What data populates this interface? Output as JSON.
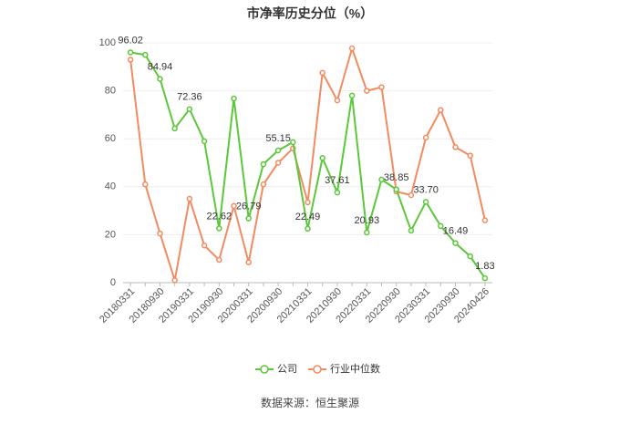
{
  "chart_data": {
    "type": "line",
    "title": "市净率历史分位（%）",
    "categories": [
      "20180331",
      null,
      "20180930",
      null,
      "20190331",
      null,
      "20190930",
      null,
      "20200331",
      null,
      "20200930",
      null,
      "20210331",
      null,
      "20210930",
      null,
      "20220331",
      null,
      "20220930",
      null,
      "20230331",
      null,
      "20230930",
      null,
      "20240426"
    ],
    "series": [
      {
        "name": "公司",
        "color": "#5cc73a",
        "values": [
          96.02,
          95,
          84.94,
          64.3,
          72.36,
          59,
          22.62,
          76.8,
          26.79,
          49.4,
          55.15,
          58.6,
          22.49,
          52,
          37.61,
          78,
          20.93,
          43,
          38.85,
          21.7,
          33.7,
          23.6,
          16.49,
          11,
          1.83
        ],
        "value_labels": [
          "96.02",
          null,
          "84.94",
          null,
          "72.36",
          null,
          "22.62",
          null,
          "26.79",
          null,
          "55.15",
          null,
          "22.49",
          null,
          "37.61",
          null,
          "20.93",
          null,
          "38.85",
          null,
          "33.70",
          null,
          "16.49",
          null,
          "1.83"
        ]
      },
      {
        "name": "行业中位数",
        "color": "#f28b61",
        "values": [
          93,
          41,
          20.5,
          1,
          35,
          15.5,
          9.5,
          32,
          8.5,
          41,
          50,
          56,
          33.5,
          87.5,
          76,
          97.7,
          80,
          81.5,
          38,
          36.5,
          60.5,
          72,
          56.5,
          53,
          26
        ]
      }
    ],
    "ylim": [
      0,
      100
    ],
    "yticks": [
      0,
      20,
      40,
      60,
      80,
      100
    ],
    "grid": true,
    "source": "数据来源：恒生聚源"
  }
}
